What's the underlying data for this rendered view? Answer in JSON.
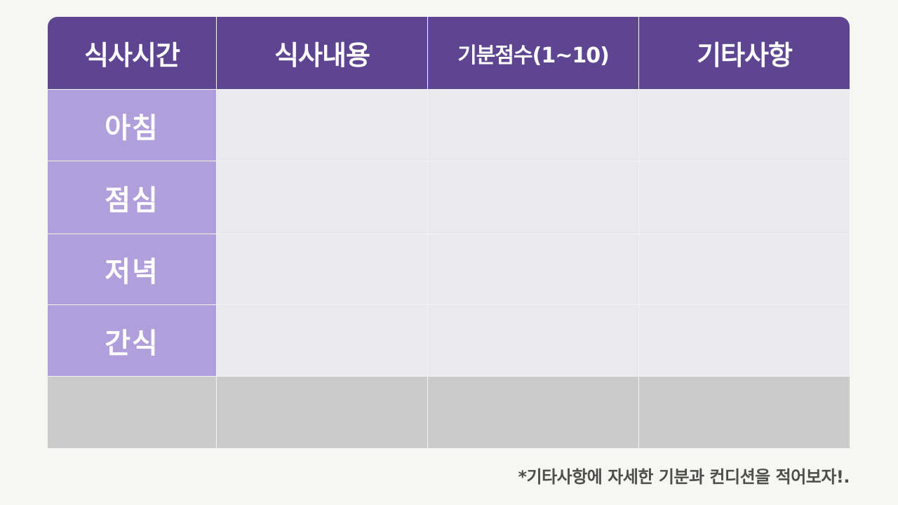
{
  "table": {
    "headers": [
      "식사시간",
      "식사내용",
      "기분점수(1~10)",
      "기타사항"
    ],
    "rows": [
      {
        "label": "아침",
        "cells": [
          "",
          "",
          ""
        ]
      },
      {
        "label": "점심",
        "cells": [
          "",
          "",
          ""
        ]
      },
      {
        "label": "저녁",
        "cells": [
          "",
          "",
          ""
        ]
      },
      {
        "label": "간식",
        "cells": [
          "",
          "",
          ""
        ]
      },
      {
        "label": "",
        "cells": [
          "",
          "",
          ""
        ]
      }
    ]
  },
  "footnote": "*기타사항에 자세한 기분과 컨디션을 적어보자!.",
  "colors": {
    "header_bg": "#5e4591",
    "label_bg": "#b19fdb",
    "body_bg": "#eae9ee",
    "extra_row_bg": "#cbcbcb",
    "page_bg": "#f6f6f2"
  }
}
